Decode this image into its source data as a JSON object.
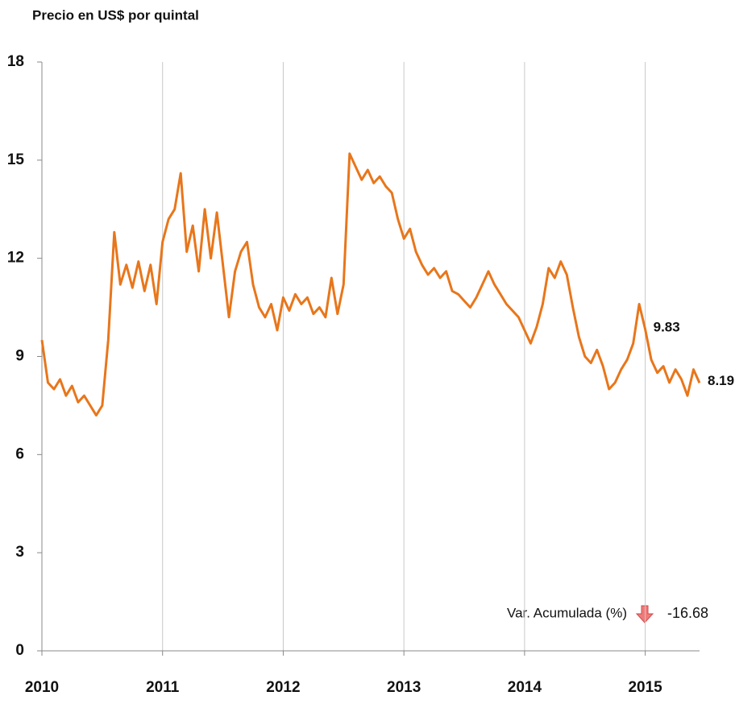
{
  "chart_data": {
    "type": "line",
    "title": "Precio en US$ por quintal",
    "x": [
      2010.0,
      2010.05,
      2010.1,
      2010.15,
      2010.2,
      2010.25,
      2010.3,
      2010.35,
      2010.4,
      2010.45,
      2010.5,
      2010.55,
      2010.6,
      2010.65,
      2010.7,
      2010.75,
      2010.8,
      2010.85,
      2010.9,
      2010.95,
      2011.0,
      2011.05,
      2011.1,
      2011.15,
      2011.2,
      2011.25,
      2011.3,
      2011.35,
      2011.4,
      2011.45,
      2011.5,
      2011.55,
      2011.6,
      2011.65,
      2011.7,
      2011.75,
      2011.8,
      2011.85,
      2011.9,
      2011.95,
      2012.0,
      2012.05,
      2012.1,
      2012.15,
      2012.2,
      2012.25,
      2012.3,
      2012.35,
      2012.4,
      2012.45,
      2012.5,
      2012.55,
      2012.6,
      2012.65,
      2012.7,
      2012.75,
      2012.8,
      2012.85,
      2012.9,
      2012.95,
      2013.0,
      2013.05,
      2013.1,
      2013.15,
      2013.2,
      2013.25,
      2013.3,
      2013.35,
      2013.4,
      2013.45,
      2013.5,
      2013.55,
      2013.6,
      2013.65,
      2013.7,
      2013.75,
      2013.8,
      2013.85,
      2013.9,
      2013.95,
      2014.0,
      2014.05,
      2014.1,
      2014.15,
      2014.2,
      2014.25,
      2014.3,
      2014.35,
      2014.4,
      2014.45,
      2014.5,
      2014.55,
      2014.6,
      2014.65,
      2014.7,
      2014.75,
      2014.8,
      2014.85,
      2014.9,
      2014.95,
      2015.0,
      2015.05,
      2015.1,
      2015.15,
      2015.2,
      2015.25,
      2015.3,
      2015.35,
      2015.4,
      2015.45
    ],
    "series": [
      {
        "color": "#e8761b",
        "values": [
          9.5,
          8.2,
          8.0,
          8.3,
          7.8,
          8.1,
          7.6,
          7.8,
          7.5,
          7.2,
          7.5,
          9.5,
          12.8,
          11.2,
          11.8,
          11.1,
          11.9,
          11.0,
          11.8,
          10.6,
          12.5,
          13.2,
          13.5,
          14.6,
          12.2,
          13.0,
          11.6,
          13.5,
          12.0,
          13.4,
          11.8,
          10.2,
          11.6,
          12.2,
          12.5,
          11.2,
          10.5,
          10.2,
          10.6,
          9.8,
          10.8,
          10.4,
          10.9,
          10.6,
          10.8,
          10.3,
          10.5,
          10.2,
          11.4,
          10.3,
          11.2,
          15.2,
          14.8,
          14.4,
          14.7,
          14.3,
          14.5,
          14.2,
          14.0,
          13.2,
          12.6,
          12.9,
          12.2,
          11.8,
          11.5,
          11.7,
          11.4,
          11.6,
          11.0,
          10.9,
          10.7,
          10.5,
          10.8,
          11.2,
          11.6,
          11.2,
          10.9,
          10.6,
          10.4,
          10.2,
          9.8,
          9.4,
          9.9,
          10.6,
          11.7,
          11.4,
          11.9,
          11.5,
          10.5,
          9.6,
          9.0,
          8.8,
          9.2,
          8.7,
          8.0,
          8.2,
          8.6,
          8.9,
          9.4,
          10.6,
          9.83,
          8.9,
          8.5,
          8.7,
          8.2,
          8.6,
          8.3,
          7.8,
          8.6,
          8.19
        ]
      }
    ],
    "xlim": [
      2010,
      2015.45
    ],
    "xticks": [
      2010,
      2011,
      2012,
      2013,
      2014,
      2015
    ],
    "ylim": [
      0,
      18
    ],
    "yticks": [
      0,
      3,
      6,
      9,
      12,
      15,
      18
    ],
    "grid": "x",
    "annotations": [
      {
        "x": 2015.0,
        "y": 9.83
      },
      {
        "x": 2015.45,
        "y": 8.19
      }
    ],
    "summary": {
      "label": "Var. Acumulada (%)",
      "value": -16.68
    }
  }
}
